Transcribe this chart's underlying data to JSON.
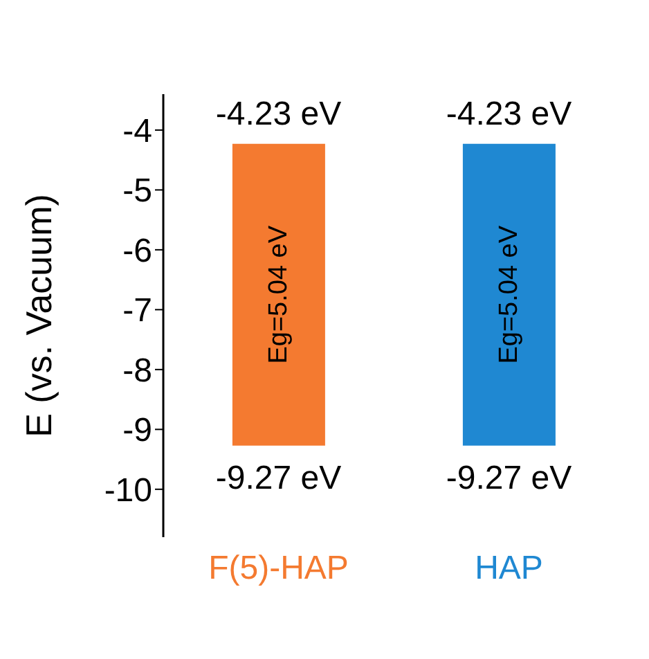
{
  "chart_data": {
    "type": "bar",
    "ylabel": "E (vs. Vacuum)",
    "categories": [
      "F(5)-HAP",
      "HAP"
    ],
    "base": [
      -9.27,
      -9.27
    ],
    "values": [
      5.04,
      5.04
    ],
    "colors": [
      "#f47a30",
      "#1f88d2"
    ],
    "value_labels": [
      "Eg=5.04 eV",
      "Eg=5.04 eV"
    ],
    "ylim": [
      -10.8,
      -3.4
    ],
    "yticks": [
      -4,
      -5,
      -6,
      -7,
      -8,
      -9,
      -10
    ],
    "grid": false,
    "legend": false,
    "annotations": [
      {
        "text": "-4.23 eV",
        "x": "F(5)-HAP",
        "y": -4.23
      },
      {
        "text": "-4.23 eV",
        "x": "HAP",
        "y": -4.23
      },
      {
        "text": "-9.27 eV",
        "x": "F(5)-HAP",
        "y": -9.27
      },
      {
        "text": "-9.27 eV",
        "x": "HAP",
        "y": -9.27
      }
    ]
  }
}
